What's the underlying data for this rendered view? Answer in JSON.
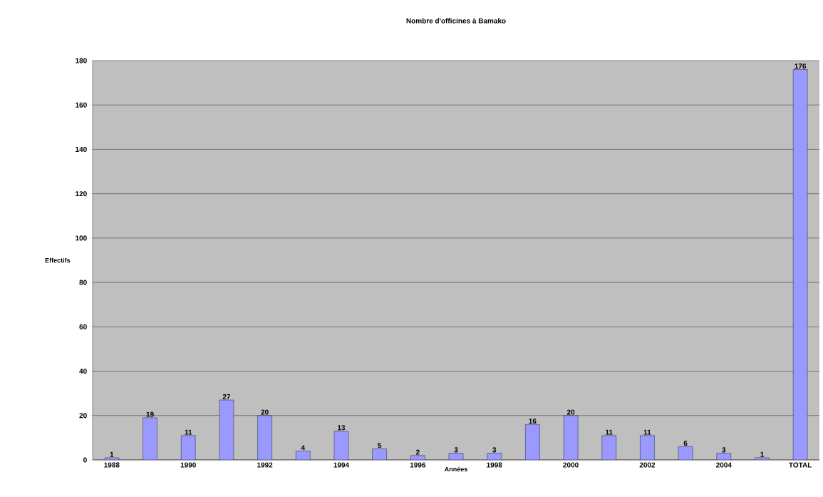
{
  "chart_data": {
    "type": "bar",
    "title": "Nombre d'officines à Bamako",
    "xlabel": "Années",
    "ylabel": "Effectifs",
    "categories": [
      "1988",
      null,
      "1990",
      null,
      "1992",
      null,
      "1994",
      null,
      "1996",
      null,
      "1998",
      null,
      "2000",
      null,
      "2002",
      null,
      "2004",
      null,
      "TOTAL"
    ],
    "values": [
      1,
      19,
      11,
      27,
      20,
      4,
      13,
      5,
      2,
      3,
      3,
      16,
      20,
      11,
      11,
      6,
      3,
      1,
      176
    ],
    "color": "#9999ff",
    "ylim": [
      0,
      180
    ],
    "yticks": [
      0,
      20,
      40,
      60,
      80,
      100,
      120,
      140,
      160,
      180
    ],
    "grid": "y",
    "data_labels": true
  }
}
